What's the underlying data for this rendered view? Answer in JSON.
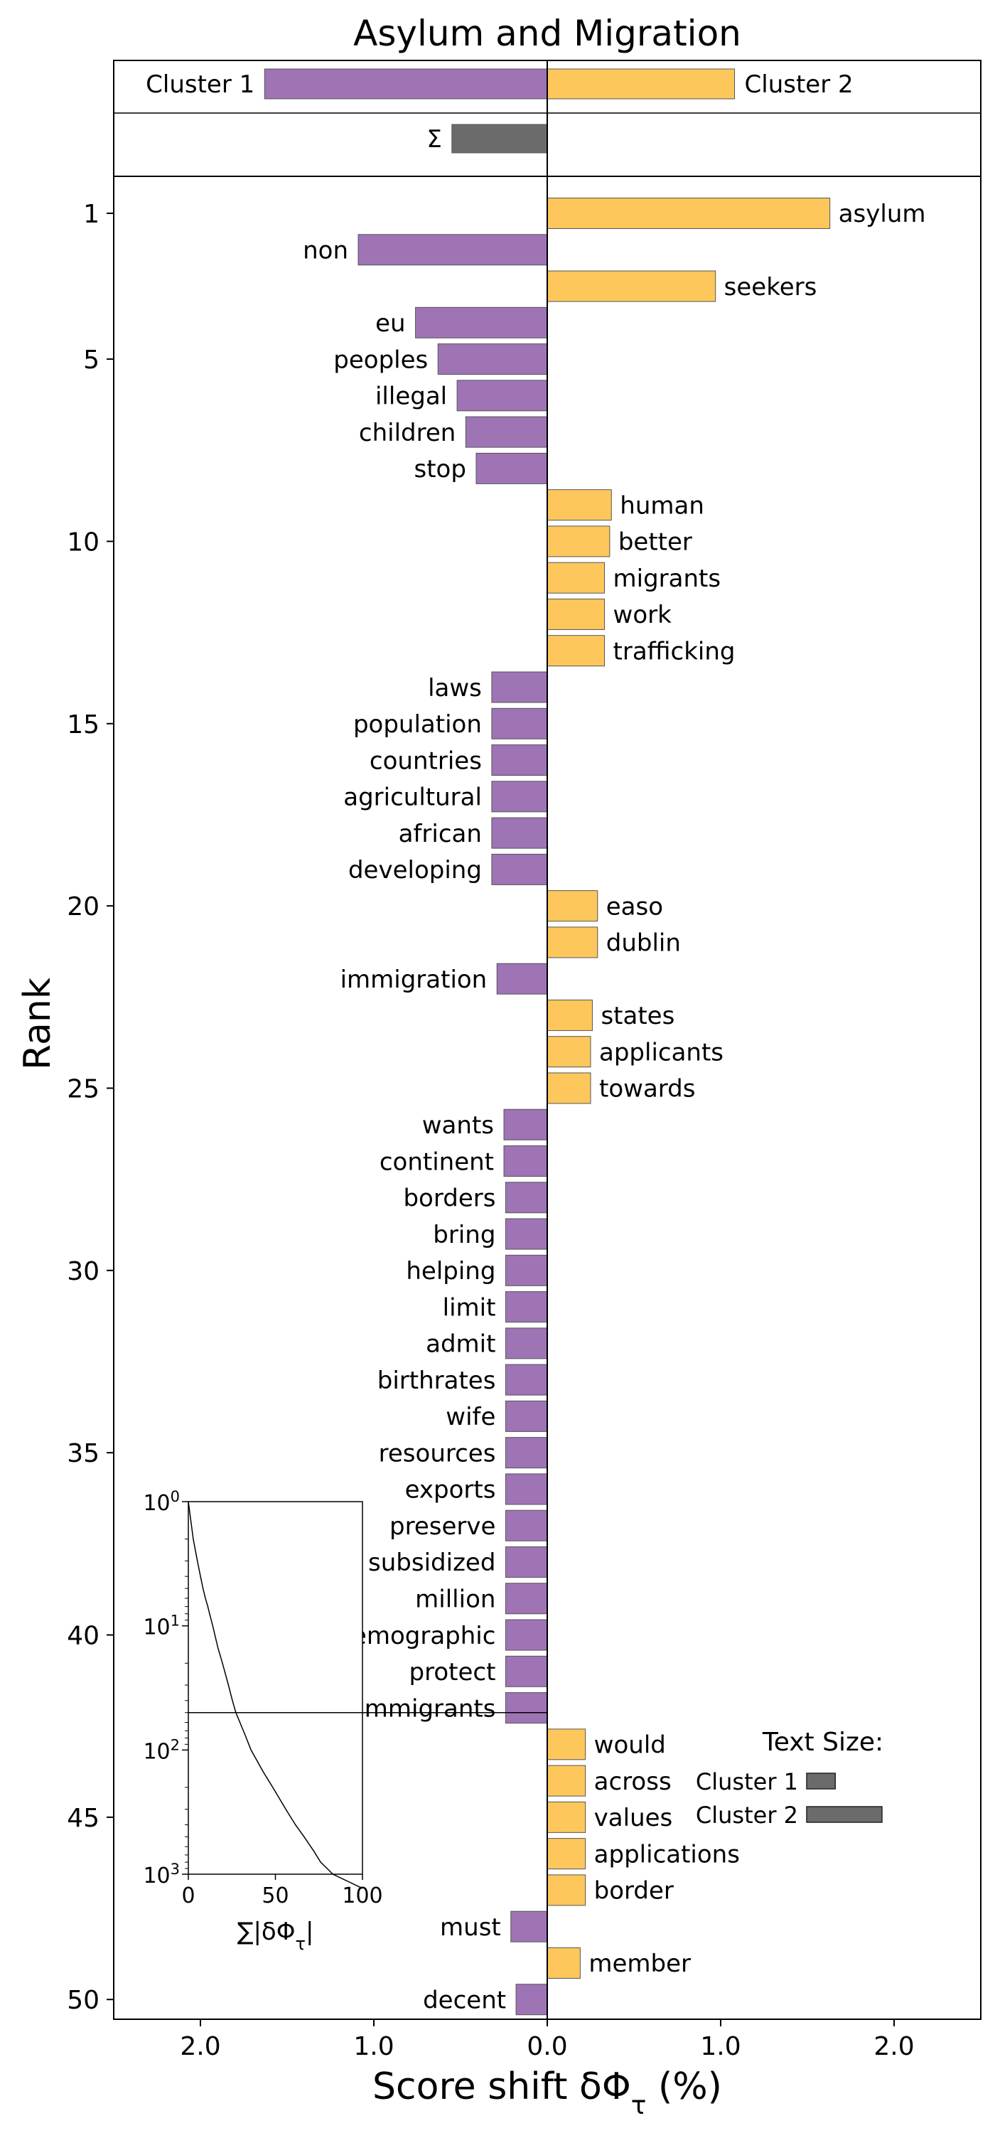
{
  "chart_data": {
    "type": "bar",
    "orientation": "horizontal",
    "title": "Asylum and Migration",
    "xlabel": "Score shift δΦ_τ (%)",
    "ylabel": "Rank",
    "xlim": [
      -2.5,
      2.5
    ],
    "xticks": [
      -2,
      -1,
      0,
      1,
      2
    ],
    "xtick_labels": [
      "2.0",
      "1.0",
      "0.0",
      "1.0",
      "2.0"
    ],
    "yticks": [
      1,
      5,
      10,
      15,
      20,
      25,
      30,
      35,
      40,
      45,
      50
    ],
    "colors": {
      "cluster1": "#9e74b5",
      "cluster2": "#fec75c",
      "total": "#6b6b6b"
    },
    "summary": [
      {
        "label": "Cluster 1",
        "value": -1.63
      },
      {
        "label": "Cluster 2",
        "value": 1.08
      },
      {
        "label": "Σ",
        "value": -0.55
      }
    ],
    "words": [
      {
        "rank": 1,
        "word": "asylum",
        "value": 1.63
      },
      {
        "rank": 2,
        "word": "non",
        "value": -1.09
      },
      {
        "rank": 3,
        "word": "seekers",
        "value": 0.97
      },
      {
        "rank": 4,
        "word": "eu",
        "value": -0.76
      },
      {
        "rank": 5,
        "word": "peoples",
        "value": -0.63
      },
      {
        "rank": 6,
        "word": "illegal",
        "value": -0.52
      },
      {
        "rank": 7,
        "word": "children",
        "value": -0.47
      },
      {
        "rank": 8,
        "word": "stop",
        "value": -0.41
      },
      {
        "rank": 9,
        "word": "human",
        "value": 0.37
      },
      {
        "rank": 10,
        "word": "better",
        "value": 0.36
      },
      {
        "rank": 11,
        "word": "migrants",
        "value": 0.33
      },
      {
        "rank": 12,
        "word": "work",
        "value": 0.33
      },
      {
        "rank": 13,
        "word": "trafficking",
        "value": 0.33
      },
      {
        "rank": 14,
        "word": "laws",
        "value": -0.32
      },
      {
        "rank": 15,
        "word": "population",
        "value": -0.32
      },
      {
        "rank": 16,
        "word": "countries",
        "value": -0.32
      },
      {
        "rank": 17,
        "word": "agricultural",
        "value": -0.32
      },
      {
        "rank": 18,
        "word": "african",
        "value": -0.32
      },
      {
        "rank": 19,
        "word": "developing",
        "value": -0.32
      },
      {
        "rank": 20,
        "word": "easo",
        "value": 0.29
      },
      {
        "rank": 21,
        "word": "dublin",
        "value": 0.29
      },
      {
        "rank": 22,
        "word": "immigration",
        "value": -0.29
      },
      {
        "rank": 23,
        "word": "states",
        "value": 0.26
      },
      {
        "rank": 24,
        "word": "applicants",
        "value": 0.25
      },
      {
        "rank": 25,
        "word": "towards",
        "value": 0.25
      },
      {
        "rank": 26,
        "word": "wants",
        "value": -0.25
      },
      {
        "rank": 27,
        "word": "continent",
        "value": -0.25
      },
      {
        "rank": 28,
        "word": "borders",
        "value": -0.24
      },
      {
        "rank": 29,
        "word": "bring",
        "value": -0.24
      },
      {
        "rank": 30,
        "word": "helping",
        "value": -0.24
      },
      {
        "rank": 31,
        "word": "limit",
        "value": -0.24
      },
      {
        "rank": 32,
        "word": "admit",
        "value": -0.24
      },
      {
        "rank": 33,
        "word": "birthrates",
        "value": -0.24
      },
      {
        "rank": 34,
        "word": "wife",
        "value": -0.24
      },
      {
        "rank": 35,
        "word": "resources",
        "value": -0.24
      },
      {
        "rank": 36,
        "word": "exports",
        "value": -0.24
      },
      {
        "rank": 37,
        "word": "preserve",
        "value": -0.24
      },
      {
        "rank": 38,
        "word": "subsidized",
        "value": -0.24
      },
      {
        "rank": 39,
        "word": "million",
        "value": -0.24
      },
      {
        "rank": 40,
        "word": "demographic",
        "value": -0.24
      },
      {
        "rank": 41,
        "word": "protect",
        "value": -0.24
      },
      {
        "rank": 42,
        "word": "immigrants",
        "value": -0.24
      },
      {
        "rank": 43,
        "word": "would",
        "value": 0.22
      },
      {
        "rank": 44,
        "word": "across",
        "value": 0.22
      },
      {
        "rank": 45,
        "word": "values",
        "value": 0.22
      },
      {
        "rank": 46,
        "word": "applications",
        "value": 0.22
      },
      {
        "rank": 47,
        "word": "border",
        "value": 0.22
      },
      {
        "rank": 48,
        "word": "must",
        "value": -0.21
      },
      {
        "rank": 49,
        "word": "member",
        "value": 0.19
      },
      {
        "rank": 50,
        "word": "decent",
        "value": -0.18
      }
    ],
    "text_size": {
      "title": "Text Size:",
      "items": [
        {
          "label": "Cluster 1",
          "value": 0.38
        },
        {
          "label": "Cluster 2",
          "value": 1.0
        }
      ]
    },
    "inset": {
      "xlabel": "∑|δΦ_τ|",
      "xlim": [
        0,
        100
      ],
      "xticks": [
        0,
        50,
        100
      ],
      "ylim": [
        1,
        1000
      ],
      "yscale": "log",
      "yaxis": "inverted",
      "ytick_labels": [
        {
          "base": "10",
          "exp": "0",
          "value": 1
        },
        {
          "base": "10",
          "exp": "1",
          "value": 10
        },
        {
          "base": "10",
          "exp": "2",
          "value": 100
        },
        {
          "base": "10",
          "exp": "3",
          "value": 1000
        }
      ],
      "hline": 50,
      "curve": [
        [
          0.0,
          1
        ],
        [
          2.8,
          2
        ],
        [
          5.2,
          3
        ],
        [
          7.0,
          4
        ],
        [
          8.4,
          5
        ],
        [
          9.8,
          6
        ],
        [
          11.2,
          7
        ],
        [
          12.2,
          8
        ],
        [
          14.0,
          10
        ],
        [
          17.0,
          15
        ],
        [
          19.6,
          20
        ],
        [
          23.0,
          30
        ],
        [
          25.3,
          40
        ],
        [
          27.3,
          50
        ],
        [
          32.5,
          75
        ],
        [
          36.0,
          100
        ],
        [
          43.0,
          150
        ],
        [
          48.5,
          200
        ],
        [
          56.0,
          300
        ],
        [
          61.5,
          400
        ],
        [
          66.5,
          500
        ],
        [
          72.0,
          650
        ],
        [
          76.0,
          800
        ],
        [
          83.0,
          1000
        ],
        [
          100.0,
          1300
        ]
      ]
    }
  }
}
